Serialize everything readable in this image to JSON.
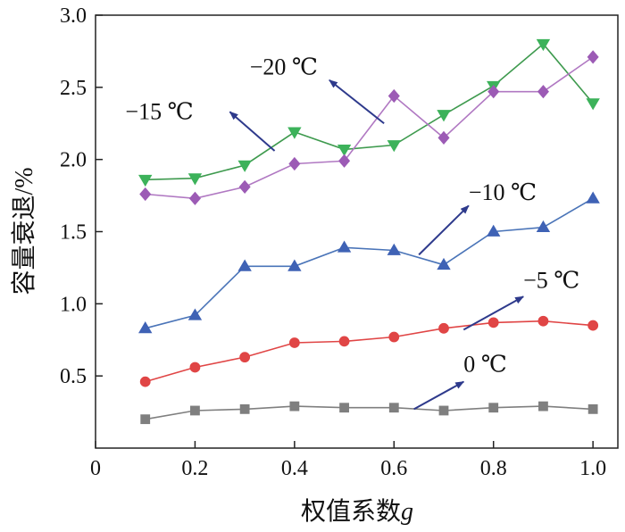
{
  "chart_data": {
    "type": "line",
    "xlabel": "权值系数",
    "xlabel_italic_suffix": "g",
    "ylabel": "容量衰退/%",
    "xlim": [
      0,
      1.05
    ],
    "ylim": [
      0,
      3.0
    ],
    "x_ticks": [
      "0",
      "0.2",
      "0.4",
      "0.6",
      "0.8",
      "1.0"
    ],
    "y_ticks": [
      "0.5",
      "1.0",
      "1.5",
      "2.0",
      "2.5",
      "3.0"
    ],
    "grid": false,
    "x": [
      0.1,
      0.2,
      0.3,
      0.4,
      0.5,
      0.6,
      0.7,
      0.8,
      0.9,
      1.0
    ],
    "series": [
      {
        "name": "0 ℃",
        "marker": "square",
        "color": "#7f7f7f",
        "marker_color": "#7f7f7f",
        "values": [
          0.2,
          0.26,
          0.27,
          0.29,
          0.28,
          0.28,
          0.26,
          0.28,
          0.29,
          0.27
        ]
      },
      {
        "name": "−5 ℃",
        "marker": "circle",
        "color": "#e04545",
        "marker_color": "#e04545",
        "values": [
          0.46,
          0.56,
          0.63,
          0.73,
          0.74,
          0.77,
          0.83,
          0.87,
          0.88,
          0.85
        ]
      },
      {
        "name": "−10 ℃",
        "marker": "triangle-up",
        "color": "#4a74b8",
        "marker_color": "#3f62b5",
        "values": [
          0.83,
          0.92,
          1.26,
          1.26,
          1.39,
          1.37,
          1.27,
          1.5,
          1.53,
          1.73
        ]
      },
      {
        "name": "−15 ℃",
        "marker": "triangle-down",
        "color": "#3e9a4e",
        "marker_color": "#3cb25a",
        "values": [
          1.86,
          1.87,
          1.96,
          2.19,
          2.07,
          2.1,
          2.31,
          2.51,
          2.8,
          2.39
        ]
      },
      {
        "name": "−20 ℃",
        "marker": "diamond",
        "color": "#b078c2",
        "marker_color": "#9c5bb5",
        "values": [
          1.76,
          1.73,
          1.81,
          1.97,
          1.99,
          2.44,
          2.15,
          2.47,
          2.47,
          2.71
        ]
      }
    ],
    "annotations": [
      {
        "text": "0 ℃",
        "series": "0 ℃",
        "arrow_from": [
          0.64,
          0.27
        ],
        "arrow_to": [
          0.74,
          0.46
        ],
        "text_at": [
          0.74,
          0.53
        ]
      },
      {
        "text": "−5 ℃",
        "series": "−5 ℃",
        "arrow_from": [
          0.74,
          0.82
        ],
        "arrow_to": [
          0.86,
          1.05
        ],
        "text_at": [
          0.86,
          1.11
        ]
      },
      {
        "text": "−10 ℃",
        "series": "−10 ℃",
        "arrow_from": [
          0.65,
          1.34
        ],
        "arrow_to": [
          0.75,
          1.68
        ],
        "text_at": [
          0.75,
          1.72
        ]
      },
      {
        "text": "−15 ℃",
        "series": "−15 ℃",
        "arrow_from": [
          0.36,
          2.06
        ],
        "arrow_to": [
          0.27,
          2.33
        ],
        "text_at": [
          0.06,
          2.28
        ]
      },
      {
        "text": "−20 ℃",
        "series": "−20 ℃",
        "arrow_from": [
          0.58,
          2.25
        ],
        "arrow_to": [
          0.47,
          2.55
        ],
        "text_at": [
          0.31,
          2.59
        ]
      }
    ],
    "annotation_arrow_color": "#2e3a8c"
  }
}
